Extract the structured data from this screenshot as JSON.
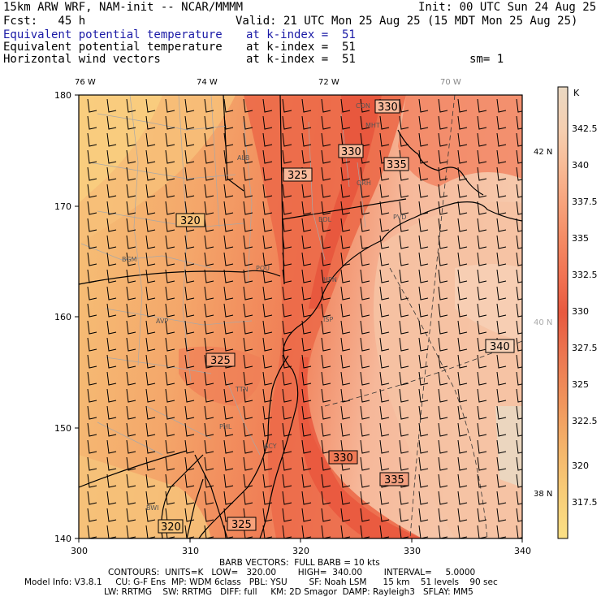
{
  "header": {
    "model": "15km ARW WRF, NAM-init -- NCAR/MMMM",
    "init": "Init: 00 UTC Sun 24 Aug 25",
    "fcst": "Fcst:   45 h",
    "valid": "Valid: 21 UTC Mon 25 Aug 25 (15 MDT Mon 25 Aug 25)",
    "fields": [
      {
        "name": "Equivalent potential temperature",
        "level": "at k-index =  51",
        "color": "#1a1aa6"
      },
      {
        "name": "Equivalent potential temperature",
        "level": "at k-index =  51",
        "color": "#000000"
      },
      {
        "name": "Horizontal wind vectors",
        "level": "at k-index =  51",
        "color": "#000000"
      }
    ],
    "sm": "sm= 1"
  },
  "map": {
    "x_ticks": [
      "300",
      "310",
      "320",
      "330",
      "340"
    ],
    "y_ticks": [
      "140",
      "150",
      "160",
      "170",
      "180"
    ],
    "top_longitudes": [
      "76 W",
      "74 W",
      "72 W",
      "70 W"
    ],
    "right_latitudes": [
      "42 N",
      "40 N",
      "38 N"
    ],
    "cities": [
      "CON",
      "MHT",
      "ALB",
      "ORH",
      "BDL",
      "PVD",
      "BGM",
      "POU",
      "HPN",
      "AVP",
      "ISP",
      "TTN",
      "PHL",
      "ACY",
      "BWI"
    ],
    "contour_labels": [
      "330",
      "330",
      "335",
      "325",
      "320",
      "340",
      "325",
      "330",
      "335",
      "325",
      "320"
    ]
  },
  "colorbar": {
    "unit": "K",
    "levels": [
      "342.5",
      "340",
      "337.5",
      "335",
      "332.5",
      "330",
      "327.5",
      "325",
      "322.5",
      "320",
      "317.5"
    ],
    "colors": [
      "#ead8c2",
      "#f6ceaf",
      "#f8b994",
      "#f7a27b",
      "#f48a63",
      "#f17252",
      "#ea5f46",
      "#e8593f",
      "#ec7852",
      "#f0955c",
      "#f4b46a",
      "#f8cd78",
      "#fbe085"
    ]
  },
  "footer": {
    "barb": "BARB VECTORS:  FULL BARB = 10 kts",
    "contours": "CONTOURS:  UNITS=K   LOW=   320.00        HIGH=  340.00        INTERVAL=     5.0000",
    "info1": "Model Info: V3.8.1     CU: G-F Ens  MP: WDM 6class   PBL: YSU        SF: Noah LSM      15 km    51 levels    90 sec",
    "info2": "LW: RRTMG    SW: RRTMG   DIFF: full     KM: 2D Smagor  DAMP: Rayleigh3   SFLAY: MM5"
  }
}
